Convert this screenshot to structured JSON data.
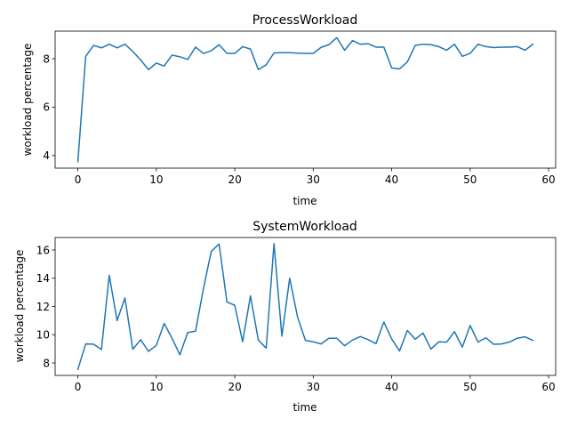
{
  "chart_data": [
    {
      "type": "line",
      "title": "ProcessWorkload",
      "xlabel": "time",
      "ylabel": "workload percentage",
      "xlim": [
        -2.9,
        60.9
      ],
      "ylim": [
        3.48,
        9.14
      ],
      "xticks": [
        0,
        10,
        20,
        30,
        40,
        50,
        60
      ],
      "yticks": [
        4,
        6,
        8
      ],
      "grid": false,
      "series": [
        {
          "color": "#1f77b4",
          "x": [
            0,
            1,
            2,
            3,
            4,
            5,
            6,
            7,
            8,
            9,
            10,
            11,
            12,
            13,
            14,
            15,
            16,
            17,
            18,
            19,
            20,
            21,
            22,
            23,
            24,
            25,
            26,
            27,
            28,
            29,
            30,
            31,
            32,
            33,
            34,
            35,
            36,
            37,
            38,
            39,
            40,
            41,
            42,
            43,
            44,
            45,
            46,
            47,
            48,
            49,
            50,
            51,
            52,
            53,
            54,
            55,
            56,
            57,
            58
          ],
          "values": [
            3.75,
            8.1,
            8.55,
            8.45,
            8.6,
            8.45,
            8.6,
            8.3,
            7.95,
            7.55,
            7.82,
            7.7,
            8.15,
            8.08,
            7.97,
            8.48,
            8.22,
            8.33,
            8.58,
            8.22,
            8.22,
            8.5,
            8.4,
            7.55,
            7.75,
            8.24,
            8.25,
            8.25,
            8.23,
            8.22,
            8.22,
            8.47,
            8.58,
            8.87,
            8.35,
            8.75,
            8.6,
            8.62,
            8.48,
            8.48,
            7.62,
            7.58,
            7.87,
            8.55,
            8.6,
            8.58,
            8.5,
            8.35,
            8.6,
            8.1,
            8.22,
            8.6,
            8.5,
            8.46,
            8.48,
            8.48,
            8.5,
            8.35,
            8.6
          ]
        }
      ]
    },
    {
      "type": "line",
      "title": "SystemWorkload",
      "xlabel": "time",
      "ylabel": "workload percentage",
      "xlim": [
        -2.9,
        60.9
      ],
      "ylim": [
        7.12,
        16.88
      ],
      "xticks": [
        0,
        10,
        20,
        30,
        40,
        50,
        60
      ],
      "yticks": [
        8,
        10,
        12,
        14,
        16
      ],
      "grid": false,
      "series": [
        {
          "color": "#1f77b4",
          "x": [
            0,
            1,
            2,
            3,
            4,
            5,
            6,
            7,
            8,
            9,
            10,
            11,
            12,
            13,
            14,
            15,
            16,
            17,
            18,
            19,
            20,
            21,
            22,
            23,
            24,
            25,
            26,
            27,
            28,
            29,
            30,
            31,
            32,
            33,
            34,
            35,
            36,
            37,
            38,
            39,
            40,
            41,
            42,
            43,
            44,
            45,
            46,
            47,
            48,
            49,
            50,
            51,
            52,
            53,
            54,
            55,
            56,
            57,
            58
          ],
          "values": [
            7.55,
            9.35,
            9.33,
            8.95,
            14.2,
            11.0,
            12.6,
            8.97,
            9.65,
            8.82,
            9.25,
            10.8,
            9.75,
            8.58,
            10.15,
            10.25,
            13.25,
            15.9,
            16.42,
            12.32,
            12.08,
            9.5,
            12.75,
            9.62,
            9.05,
            16.45,
            9.9,
            14.0,
            11.25,
            9.6,
            9.5,
            9.35,
            9.75,
            9.75,
            9.22,
            9.62,
            9.87,
            9.65,
            9.37,
            10.9,
            9.7,
            8.85,
            10.3,
            9.68,
            10.12,
            8.98,
            9.5,
            9.47,
            10.22,
            9.12,
            10.65,
            9.48,
            9.78,
            9.32,
            9.35,
            9.48,
            9.75,
            9.85,
            9.6
          ]
        }
      ]
    }
  ]
}
